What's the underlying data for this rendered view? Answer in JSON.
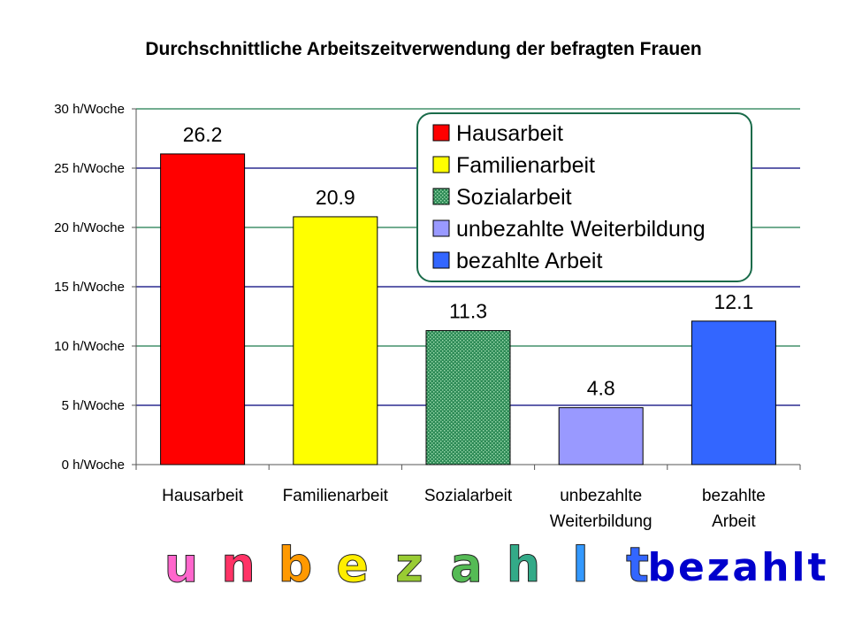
{
  "chart_data": {
    "type": "bar",
    "title": "Durchschnittliche Arbeitszeitverwendung der befragten Frauen",
    "categories": [
      [
        "Hausarbeit"
      ],
      [
        "Familienarbeit"
      ],
      [
        "Sozialarbeit"
      ],
      [
        "unbezahlte",
        "Weiterbildung"
      ],
      [
        "bezahlte",
        "Arbeit"
      ]
    ],
    "values": [
      26.2,
      20.9,
      11.3,
      4.8,
      12.1
    ],
    "value_labels": [
      "26.2",
      "20.9",
      "11.3",
      "4.8",
      "12.1"
    ],
    "colors": [
      "#ff0000",
      "#ffff00",
      "#2e8b57",
      "#9999ff",
      "#3366ff"
    ],
    "patterns": [
      "solid",
      "solid",
      "dotted",
      "solid",
      "solid"
    ],
    "ylim": [
      0,
      30
    ],
    "yticks": [
      0,
      5,
      10,
      15,
      20,
      25,
      30
    ],
    "ytick_labels": [
      "0 h/Woche",
      "5 h/Woche",
      "10 h/Woche",
      "15 h/Woche",
      "20 h/Woche",
      "25 h/Woche",
      "30 h/Woche"
    ],
    "grid": true,
    "legend_position": "top-right",
    "legend": [
      "Hausarbeit",
      "Familienarbeit",
      "Sozialarbeit",
      "unbezahlte Weiterbildung",
      "bezahlte Arbeit"
    ]
  },
  "annotations": {
    "unpaid_letters": [
      "u",
      "n",
      "b",
      "e",
      "z",
      "a",
      "h",
      "l",
      "t"
    ],
    "unpaid_colors": [
      "#ff66cc",
      "#ff3366",
      "#ff9900",
      "#ffee00",
      "#99cc33",
      "#55bb55",
      "#33aa88",
      "#3399ff",
      "#3366ff"
    ],
    "paid_word": "bezahlt",
    "paid_color": "#0000cc"
  }
}
